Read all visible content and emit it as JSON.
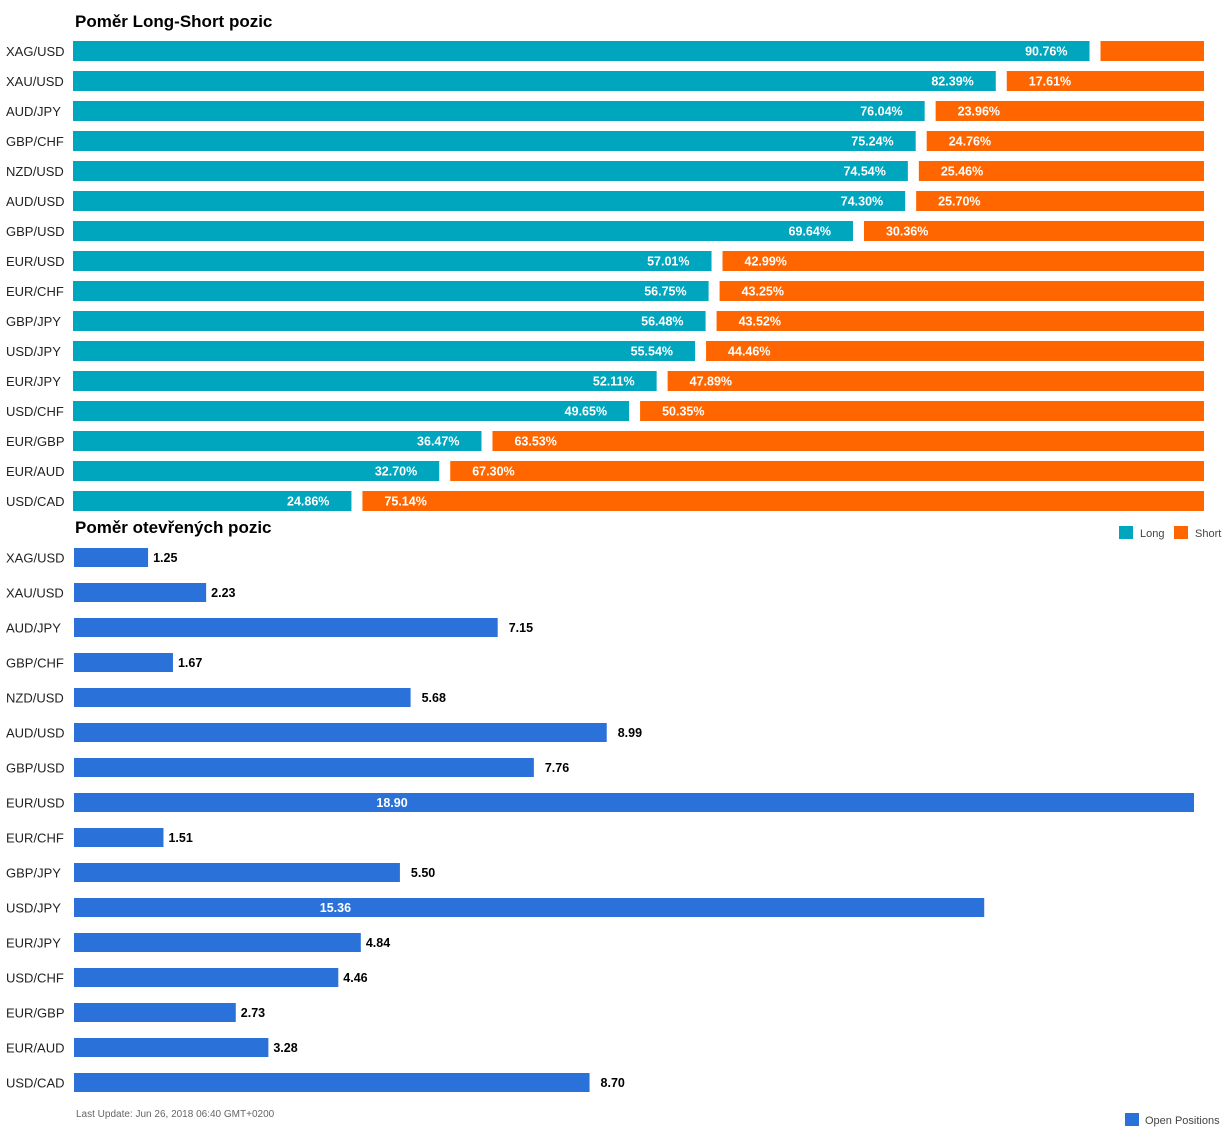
{
  "colors": {
    "long": "#00A5BE",
    "short": "#FF6600",
    "open_positions": "#2A72DA"
  },
  "chart_data": [
    {
      "type": "bar",
      "orientation": "horizontal",
      "stacked": true,
      "title": "Poměr Long-Short pozic",
      "categories": [
        "XAG/USD",
        "XAU/USD",
        "AUD/JPY",
        "GBP/CHF",
        "NZD/USD",
        "AUD/USD",
        "GBP/USD",
        "EUR/USD",
        "EUR/CHF",
        "GBP/JPY",
        "USD/JPY",
        "EUR/JPY",
        "USD/CHF",
        "EUR/GBP",
        "EUR/AUD",
        "USD/CAD"
      ],
      "series": [
        {
          "name": "Long",
          "values": [
            90.76,
            82.39,
            76.04,
            75.24,
            74.54,
            74.3,
            69.64,
            57.01,
            56.75,
            56.48,
            55.54,
            52.11,
            49.65,
            36.47,
            32.7,
            24.86
          ],
          "labels": [
            "90.76%",
            "82.39%",
            "76.04%",
            "75.24%",
            "74.54%",
            "74.30%",
            "69.64%",
            "57.01%",
            "56.75%",
            "56.48%",
            "55.54%",
            "52.11%",
            "49.65%",
            "36.47%",
            "32.70%",
            "24.86%"
          ]
        },
        {
          "name": "Short",
          "values": [
            9.24,
            17.61,
            23.96,
            24.76,
            25.46,
            25.7,
            30.36,
            42.99,
            43.25,
            43.52,
            44.46,
            47.89,
            50.35,
            63.53,
            67.3,
            75.14
          ],
          "labels": [
            "",
            "17.61%",
            "23.96%",
            "24.76%",
            "25.46%",
            "25.70%",
            "30.36%",
            "42.99%",
            "43.25%",
            "43.52%",
            "44.46%",
            "47.89%",
            "50.35%",
            "63.53%",
            "67.30%",
            "75.14%"
          ]
        }
      ],
      "xlim": [
        0,
        100
      ],
      "legend": "bottom-right",
      "grid": false
    },
    {
      "type": "bar",
      "orientation": "horizontal",
      "title": "Poměr otevřených pozic",
      "categories": [
        "XAG/USD",
        "XAU/USD",
        "AUD/JPY",
        "GBP/CHF",
        "NZD/USD",
        "AUD/USD",
        "GBP/USD",
        "EUR/USD",
        "EUR/CHF",
        "GBP/JPY",
        "USD/JPY",
        "EUR/JPY",
        "USD/CHF",
        "EUR/GBP",
        "EUR/AUD",
        "USD/CAD"
      ],
      "series": [
        {
          "name": "Open Positions",
          "values": [
            1.25,
            2.23,
            7.15,
            1.67,
            5.68,
            8.99,
            7.76,
            18.9,
            1.51,
            5.5,
            15.36,
            4.84,
            4.46,
            2.73,
            3.28,
            8.7
          ],
          "labels": [
            "1.25",
            "2.23",
            "7.15",
            "1.67",
            "5.68",
            "8.99",
            "7.76",
            "18.90",
            "1.51",
            "5.50",
            "15.36",
            "4.84",
            "4.46",
            "2.73",
            "3.28",
            "8.70"
          ]
        }
      ],
      "xlim": [
        0,
        18.9
      ],
      "legend": "bottom-right",
      "grid": false
    }
  ],
  "footer": {
    "last_update": "Last Update: Jun 26, 2018 06:40 GMT+0200"
  }
}
